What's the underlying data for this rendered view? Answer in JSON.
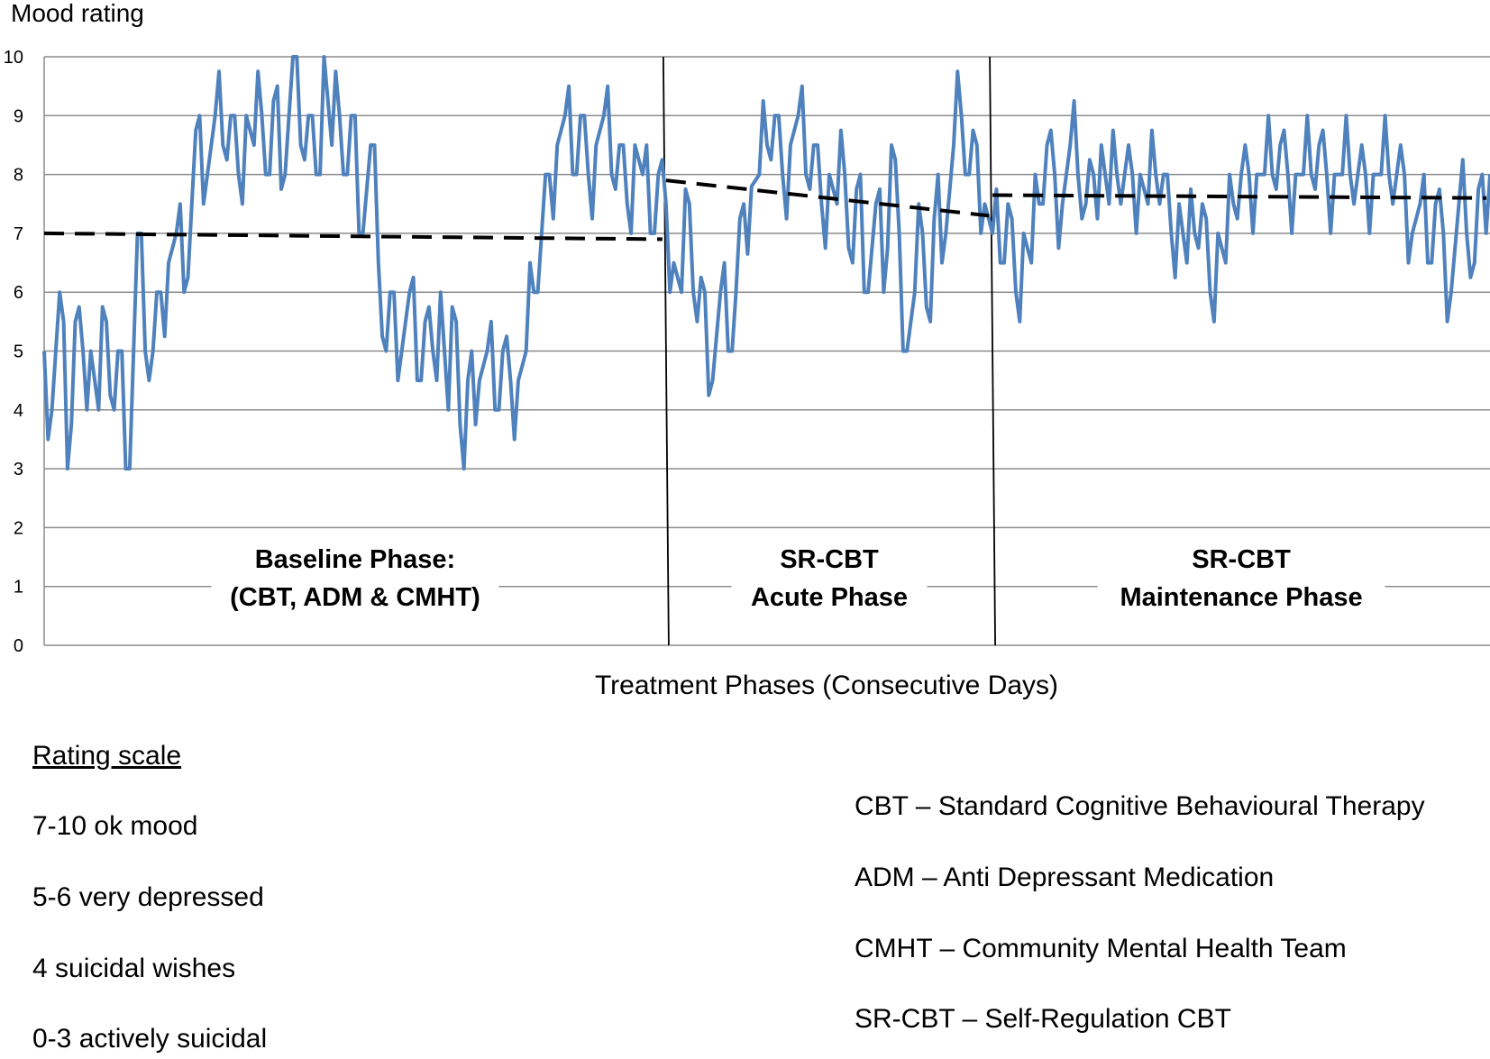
{
  "chart_data": {
    "type": "line",
    "ylabel": "Mood rating",
    "xlabel": "Treatment  Phases (Consecutive Days)",
    "ylim": [
      0,
      10
    ],
    "yticks": [
      "0",
      "1",
      "2",
      "3",
      "4",
      "5",
      "6",
      "7",
      "8",
      "9",
      "10"
    ],
    "grid": true,
    "line_color": "#4F81BD",
    "trend_color": "#000000",
    "phases": [
      {
        "label_lines": [
          "Baseline Phase:",
          "(CBT, ADM & CMHT)"
        ],
        "start_day": 0,
        "end_day": 400,
        "trend": [
          7.0,
          6.9
        ]
      },
      {
        "label_lines": [
          "SR-CBT",
          "Acute Phase"
        ],
        "start_day": 400,
        "end_day": 610,
        "trend": [
          7.9,
          7.3
        ]
      },
      {
        "label_lines": [
          "SR-CBT",
          "Maintenance Phase"
        ],
        "start_day": 610,
        "end_day": 930,
        "trend": [
          7.65,
          7.6
        ]
      }
    ],
    "x_range": [
      0,
      930
    ],
    "series": [
      {
        "anchors": [
          [
            0,
            5
          ],
          [
            5,
            4
          ],
          [
            10,
            6
          ],
          [
            15,
            3
          ],
          [
            20,
            5.5
          ],
          [
            25,
            5
          ],
          [
            30,
            5
          ],
          [
            35,
            4
          ],
          [
            40,
            5.5
          ],
          [
            45,
            4
          ],
          [
            50,
            5
          ],
          [
            55,
            3
          ],
          [
            60,
            7
          ],
          [
            65,
            5
          ],
          [
            70,
            5
          ],
          [
            75,
            6
          ],
          [
            80,
            6.5
          ],
          [
            85,
            7
          ],
          [
            90,
            6
          ],
          [
            95,
            7.5
          ],
          [
            100,
            9
          ],
          [
            105,
            8
          ],
          [
            110,
            9
          ],
          [
            115,
            8.5
          ],
          [
            120,
            9
          ],
          [
            125,
            8
          ],
          [
            130,
            9
          ],
          [
            135,
            8.5
          ],
          [
            140,
            9
          ],
          [
            145,
            8
          ],
          [
            150,
            9.5
          ],
          [
            155,
            8
          ],
          [
            160,
            10
          ],
          [
            165,
            8.5
          ],
          [
            170,
            9
          ],
          [
            175,
            8
          ],
          [
            180,
            10
          ],
          [
            185,
            8.5
          ],
          [
            190,
            9
          ],
          [
            195,
            8
          ],
          [
            200,
            9
          ],
          [
            205,
            7
          ],
          [
            210,
            8.5
          ],
          [
            215,
            6.5
          ],
          [
            220,
            5
          ],
          [
            225,
            6
          ],
          [
            230,
            5
          ],
          [
            235,
            6
          ],
          [
            240,
            4.5
          ],
          [
            245,
            5.5
          ],
          [
            250,
            5
          ],
          [
            255,
            6
          ],
          [
            260,
            4
          ],
          [
            265,
            5.5
          ],
          [
            270,
            3
          ],
          [
            275,
            5
          ],
          [
            280,
            4.5
          ],
          [
            285,
            5
          ],
          [
            290,
            4
          ],
          [
            295,
            5
          ],
          [
            300,
            4.5
          ],
          [
            305,
            4.5
          ],
          [
            310,
            5
          ],
          [
            315,
            6
          ],
          [
            320,
            7
          ],
          [
            325,
            8
          ],
          [
            330,
            8.5
          ],
          [
            335,
            9
          ],
          [
            340,
            8
          ],
          [
            345,
            9
          ],
          [
            350,
            8
          ],
          [
            355,
            8.5
          ],
          [
            360,
            9
          ],
          [
            365,
            8
          ],
          [
            370,
            8.5
          ],
          [
            375,
            7.5
          ],
          [
            380,
            8.5
          ],
          [
            385,
            8
          ],
          [
            390,
            7
          ],
          [
            395,
            8
          ],
          [
            400,
            7.5
          ],
          [
            405,
            6.5
          ],
          [
            410,
            6
          ],
          [
            415,
            7.5
          ],
          [
            420,
            5.5
          ],
          [
            425,
            6
          ],
          [
            430,
            4.5
          ],
          [
            435,
            6
          ],
          [
            440,
            5
          ],
          [
            445,
            6
          ],
          [
            450,
            7.5
          ],
          [
            455,
            7.8
          ],
          [
            460,
            8
          ],
          [
            465,
            8.5
          ],
          [
            470,
            9
          ],
          [
            475,
            8
          ],
          [
            480,
            8.5
          ],
          [
            485,
            9
          ],
          [
            490,
            8
          ],
          [
            495,
            8.5
          ],
          [
            500,
            7.5
          ],
          [
            505,
            8
          ],
          [
            510,
            7.5
          ],
          [
            515,
            8
          ],
          [
            520,
            6.5
          ],
          [
            525,
            8
          ],
          [
            530,
            6
          ],
          [
            535,
            7.5
          ],
          [
            540,
            6
          ],
          [
            545,
            8.5
          ],
          [
            550,
            7
          ],
          [
            555,
            5
          ],
          [
            560,
            6
          ],
          [
            565,
            7
          ],
          [
            570,
            5.5
          ],
          [
            575,
            8
          ],
          [
            580,
            7
          ],
          [
            585,
            8.5
          ],
          [
            590,
            9
          ],
          [
            595,
            8
          ],
          [
            600,
            8.5
          ],
          [
            605,
            7.5
          ],
          [
            610,
            7
          ],
          [
            615,
            6.5
          ],
          [
            620,
            7.5
          ],
          [
            625,
            6
          ],
          [
            630,
            7
          ],
          [
            635,
            6.5
          ],
          [
            640,
            7.5
          ],
          [
            645,
            8.5
          ],
          [
            650,
            8
          ],
          [
            655,
            7.5
          ],
          [
            660,
            8.5
          ],
          [
            665,
            8
          ],
          [
            670,
            7.5
          ],
          [
            675,
            8
          ],
          [
            680,
            8.5
          ],
          [
            685,
            7.5
          ],
          [
            690,
            8
          ],
          [
            695,
            8
          ],
          [
            700,
            8
          ],
          [
            705,
            8
          ],
          [
            710,
            7.5
          ],
          [
            715,
            8
          ],
          [
            720,
            8
          ],
          [
            725,
            7
          ],
          [
            730,
            7.5
          ],
          [
            735,
            6.5
          ],
          [
            740,
            7
          ],
          [
            745,
            7.5
          ],
          [
            750,
            6
          ],
          [
            755,
            7
          ],
          [
            760,
            6.5
          ],
          [
            765,
            7.5
          ],
          [
            770,
            8
          ],
          [
            775,
            8
          ],
          [
            780,
            8
          ],
          [
            785,
            8
          ],
          [
            790,
            8
          ],
          [
            795,
            8.5
          ],
          [
            800,
            8
          ],
          [
            805,
            8
          ],
          [
            810,
            8
          ],
          [
            815,
            8
          ],
          [
            820,
            8.5
          ],
          [
            825,
            8
          ],
          [
            830,
            8
          ],
          [
            835,
            8
          ],
          [
            840,
            8
          ],
          [
            845,
            8
          ],
          [
            850,
            8
          ],
          [
            855,
            8
          ],
          [
            860,
            8
          ],
          [
            865,
            8
          ],
          [
            870,
            8
          ],
          [
            875,
            8
          ],
          [
            880,
            7
          ],
          [
            885,
            7.5
          ],
          [
            890,
            6.5
          ],
          [
            895,
            7.5
          ],
          [
            900,
            7
          ],
          [
            905,
            6
          ],
          [
            910,
            7.5
          ],
          [
            915,
            7
          ],
          [
            920,
            6.5
          ],
          [
            925,
            8
          ],
          [
            930,
            8
          ]
        ]
      }
    ]
  },
  "legend": {
    "scale_title": "Rating scale",
    "scale_items": [
      "7-10 ok mood",
      "5-6 very  depressed",
      "4 suicidal wishes",
      "0-3 actively  suicidal"
    ],
    "abbreviations": [
      "CBT – Standard Cognitive Behavioural Therapy",
      "ADM – Anti Depressant Medication",
      "CMHT – Community  Mental Health  Team",
      "SR-CBT – Self-Regulation  CBT"
    ]
  }
}
